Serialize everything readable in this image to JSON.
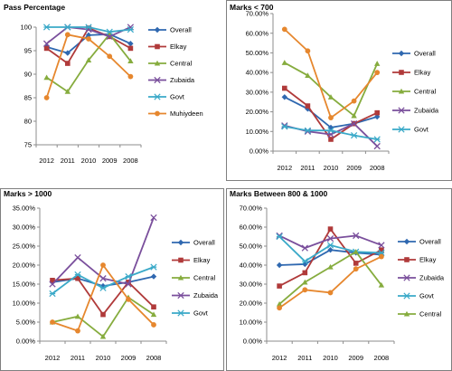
{
  "chart_data": [
    {
      "type": "line",
      "title": "Pass Percentage",
      "categories": [
        "2012",
        "2011",
        "2010",
        "2009",
        "2008"
      ],
      "ylim": [
        75,
        100
      ],
      "yticks": [
        75,
        80,
        85,
        90,
        95,
        100
      ],
      "percent_axis": false,
      "grid": false,
      "legend": "right",
      "series": [
        {
          "name": "Overall",
          "color": "#2f68b0",
          "marker": "diamond",
          "values": [
            95.8,
            94.5,
            98.3,
            98.5,
            96.5
          ]
        },
        {
          "name": "Elkay",
          "color": "#b03a3a",
          "marker": "square",
          "values": [
            95.5,
            92.3,
            99.8,
            98.0,
            95.5
          ]
        },
        {
          "name": "Central",
          "color": "#86ac3e",
          "marker": "triangle",
          "values": [
            89.3,
            86.3,
            93.0,
            98.5,
            92.8
          ]
        },
        {
          "name": "Zubaida",
          "color": "#7a4f9c",
          "marker": "x",
          "values": [
            96.5,
            100,
            99.5,
            98.0,
            100
          ]
        },
        {
          "name": "Govt",
          "color": "#3aa9c8",
          "marker": "star",
          "values": [
            100,
            100,
            100,
            99.0,
            99.5
          ]
        },
        {
          "name": "Muhiydeen",
          "color": "#e6872e",
          "marker": "circle",
          "values": [
            85.0,
            98.4,
            97.5,
            93.8,
            89.5
          ]
        }
      ]
    },
    {
      "type": "line",
      "title": "Marks < 700",
      "categories": [
        "2012",
        "2011",
        "2010",
        "2009",
        "2008"
      ],
      "ylim": [
        0,
        0.7
      ],
      "yticks": [
        0,
        0.1,
        0.2,
        0.3,
        0.4,
        0.5,
        0.6,
        0.7
      ],
      "percent_axis": true,
      "grid": false,
      "legend": "right",
      "series": [
        {
          "name": "Overall",
          "color": "#2f68b0",
          "marker": "diamond",
          "values": [
            0.275,
            0.215,
            0.12,
            0.14,
            0.175
          ]
        },
        {
          "name": "Elkay",
          "color": "#b03a3a",
          "marker": "square",
          "values": [
            0.32,
            0.23,
            0.06,
            0.14,
            0.195
          ]
        },
        {
          "name": "Central",
          "color": "#86ac3e",
          "marker": "triangle",
          "values": [
            0.45,
            0.385,
            0.275,
            0.18,
            0.445
          ]
        },
        {
          "name": "Zubaida",
          "color": "#7a4f9c",
          "marker": "x",
          "values": [
            0.13,
            0.1,
            0.085,
            0.14,
            0.025
          ]
        },
        {
          "name": "Govt",
          "color": "#3aa9c8",
          "marker": "star",
          "values": [
            0.125,
            0.105,
            0.105,
            0.08,
            0.06
          ]
        },
        {
          "name": "",
          "color": "#e6872e",
          "marker": "circle",
          "values": [
            0.62,
            0.51,
            0.17,
            0.255,
            0.4
          ]
        }
      ]
    },
    {
      "type": "line",
      "title": "Marks > 1000",
      "categories": [
        "2012",
        "2011",
        "2010",
        "2009",
        "2008"
      ],
      "ylim": [
        0,
        0.35
      ],
      "yticks": [
        0,
        0.05,
        0.1,
        0.15,
        0.2,
        0.25,
        0.3,
        0.35
      ],
      "percent_axis": true,
      "grid": false,
      "legend": "right",
      "series": [
        {
          "name": "Overall",
          "color": "#2f68b0",
          "marker": "diamond",
          "values": [
            0.155,
            0.165,
            0.145,
            0.155,
            0.17
          ]
        },
        {
          "name": "Elkay",
          "color": "#b03a3a",
          "marker": "square",
          "values": [
            0.16,
            0.165,
            0.07,
            0.155,
            0.09
          ]
        },
        {
          "name": "Central",
          "color": "#86ac3e",
          "marker": "triangle",
          "values": [
            0.05,
            0.065,
            0.012,
            0.115,
            0.07
          ]
        },
        {
          "name": "Zubaida",
          "color": "#7a4f9c",
          "marker": "x",
          "values": [
            0.15,
            0.22,
            0.165,
            0.15,
            0.325
          ]
        },
        {
          "name": "Govt",
          "color": "#3aa9c8",
          "marker": "star",
          "values": [
            0.125,
            0.175,
            0.14,
            0.17,
            0.195
          ]
        },
        {
          "name": "",
          "color": "#e6872e",
          "marker": "circle",
          "values": [
            0.05,
            0.027,
            0.2,
            0.11,
            0.043
          ]
        }
      ]
    },
    {
      "type": "line",
      "title": "Marks Between 800 & 1000",
      "categories": [
        "2012",
        "2011",
        "2010",
        "2009",
        "2008"
      ],
      "ylim": [
        0,
        0.7
      ],
      "yticks": [
        0,
        0.1,
        0.2,
        0.3,
        0.4,
        0.5,
        0.6,
        0.7
      ],
      "percent_axis": true,
      "grid": false,
      "legend": "right",
      "series": [
        {
          "name": "Overall",
          "color": "#2f68b0",
          "marker": "diamond",
          "values": [
            0.4,
            0.405,
            0.48,
            0.465,
            0.455
          ]
        },
        {
          "name": "Elkay",
          "color": "#b03a3a",
          "marker": "square",
          "values": [
            0.29,
            0.36,
            0.59,
            0.41,
            0.48
          ]
        },
        {
          "name": "Zubaida",
          "color": "#7a4f9c",
          "marker": "x",
          "values": [
            0.555,
            0.49,
            0.54,
            0.555,
            0.505
          ]
        },
        {
          "name": "Govt",
          "color": "#3aa9c8",
          "marker": "star",
          "values": [
            0.55,
            0.42,
            0.505,
            0.47,
            0.465
          ]
        },
        {
          "name": "Central",
          "color": "#86ac3e",
          "marker": "triangle",
          "values": [
            0.195,
            0.31,
            0.39,
            0.47,
            0.295
          ]
        },
        {
          "name": "",
          "color": "#e6872e",
          "marker": "circle",
          "values": [
            0.175,
            0.27,
            0.255,
            0.38,
            0.445
          ]
        }
      ]
    }
  ]
}
